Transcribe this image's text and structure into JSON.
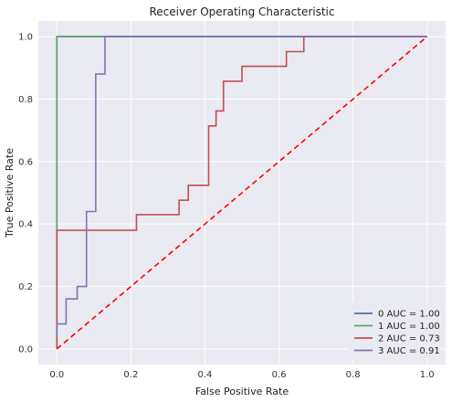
{
  "chart_data": {
    "type": "line",
    "title": "Receiver Operating Characteristic",
    "xlabel": "False Positive Rate",
    "ylabel": "True Positive Rate",
    "xlim": [
      -0.05,
      1.05
    ],
    "ylim": [
      -0.05,
      1.05
    ],
    "xticks": [
      "0.0",
      "0.2",
      "0.4",
      "0.6",
      "0.8",
      "1.0"
    ],
    "yticks": [
      "0.0",
      "0.2",
      "0.4",
      "0.6",
      "0.8",
      "1.0"
    ],
    "grid": true,
    "legend_position": "bottom-right",
    "series": [
      {
        "name": "0 AUC = 1.00",
        "color": "#4c72b0",
        "points": [
          [
            0,
            0
          ],
          [
            0,
            1
          ],
          [
            1,
            1
          ]
        ]
      },
      {
        "name": "1 AUC = 1.00",
        "color": "#55a868",
        "points": [
          [
            0,
            0
          ],
          [
            0,
            1
          ],
          [
            1,
            1
          ]
        ]
      },
      {
        "name": "2 AUC = 0.73",
        "color": "#c44e52",
        "points": [
          [
            0,
            0
          ],
          [
            0,
            0.38
          ],
          [
            0.215,
            0.38
          ],
          [
            0.215,
            0.43
          ],
          [
            0.33,
            0.43
          ],
          [
            0.33,
            0.476
          ],
          [
            0.355,
            0.476
          ],
          [
            0.355,
            0.524
          ],
          [
            0.41,
            0.524
          ],
          [
            0.41,
            0.714
          ],
          [
            0.43,
            0.714
          ],
          [
            0.43,
            0.762
          ],
          [
            0.45,
            0.762
          ],
          [
            0.45,
            0.857
          ],
          [
            0.5,
            0.857
          ],
          [
            0.5,
            0.905
          ],
          [
            0.62,
            0.905
          ],
          [
            0.62,
            0.952
          ],
          [
            0.667,
            0.952
          ],
          [
            0.667,
            1.0
          ],
          [
            1,
            1
          ]
        ]
      },
      {
        "name": "3 AUC = 0.91",
        "color": "#8172b2",
        "points": [
          [
            0,
            0.04
          ],
          [
            0,
            0.08
          ],
          [
            0.025,
            0.08
          ],
          [
            0.025,
            0.16
          ],
          [
            0.055,
            0.16
          ],
          [
            0.055,
            0.2
          ],
          [
            0.08,
            0.2
          ],
          [
            0.08,
            0.44
          ],
          [
            0.105,
            0.44
          ],
          [
            0.105,
            0.88
          ],
          [
            0.13,
            0.88
          ],
          [
            0.13,
            1.0
          ],
          [
            1,
            1
          ]
        ]
      }
    ],
    "reference_line": {
      "color": "#ff0000",
      "style": "dashed",
      "points": [
        [
          0,
          0
        ],
        [
          1,
          1
        ]
      ]
    }
  }
}
